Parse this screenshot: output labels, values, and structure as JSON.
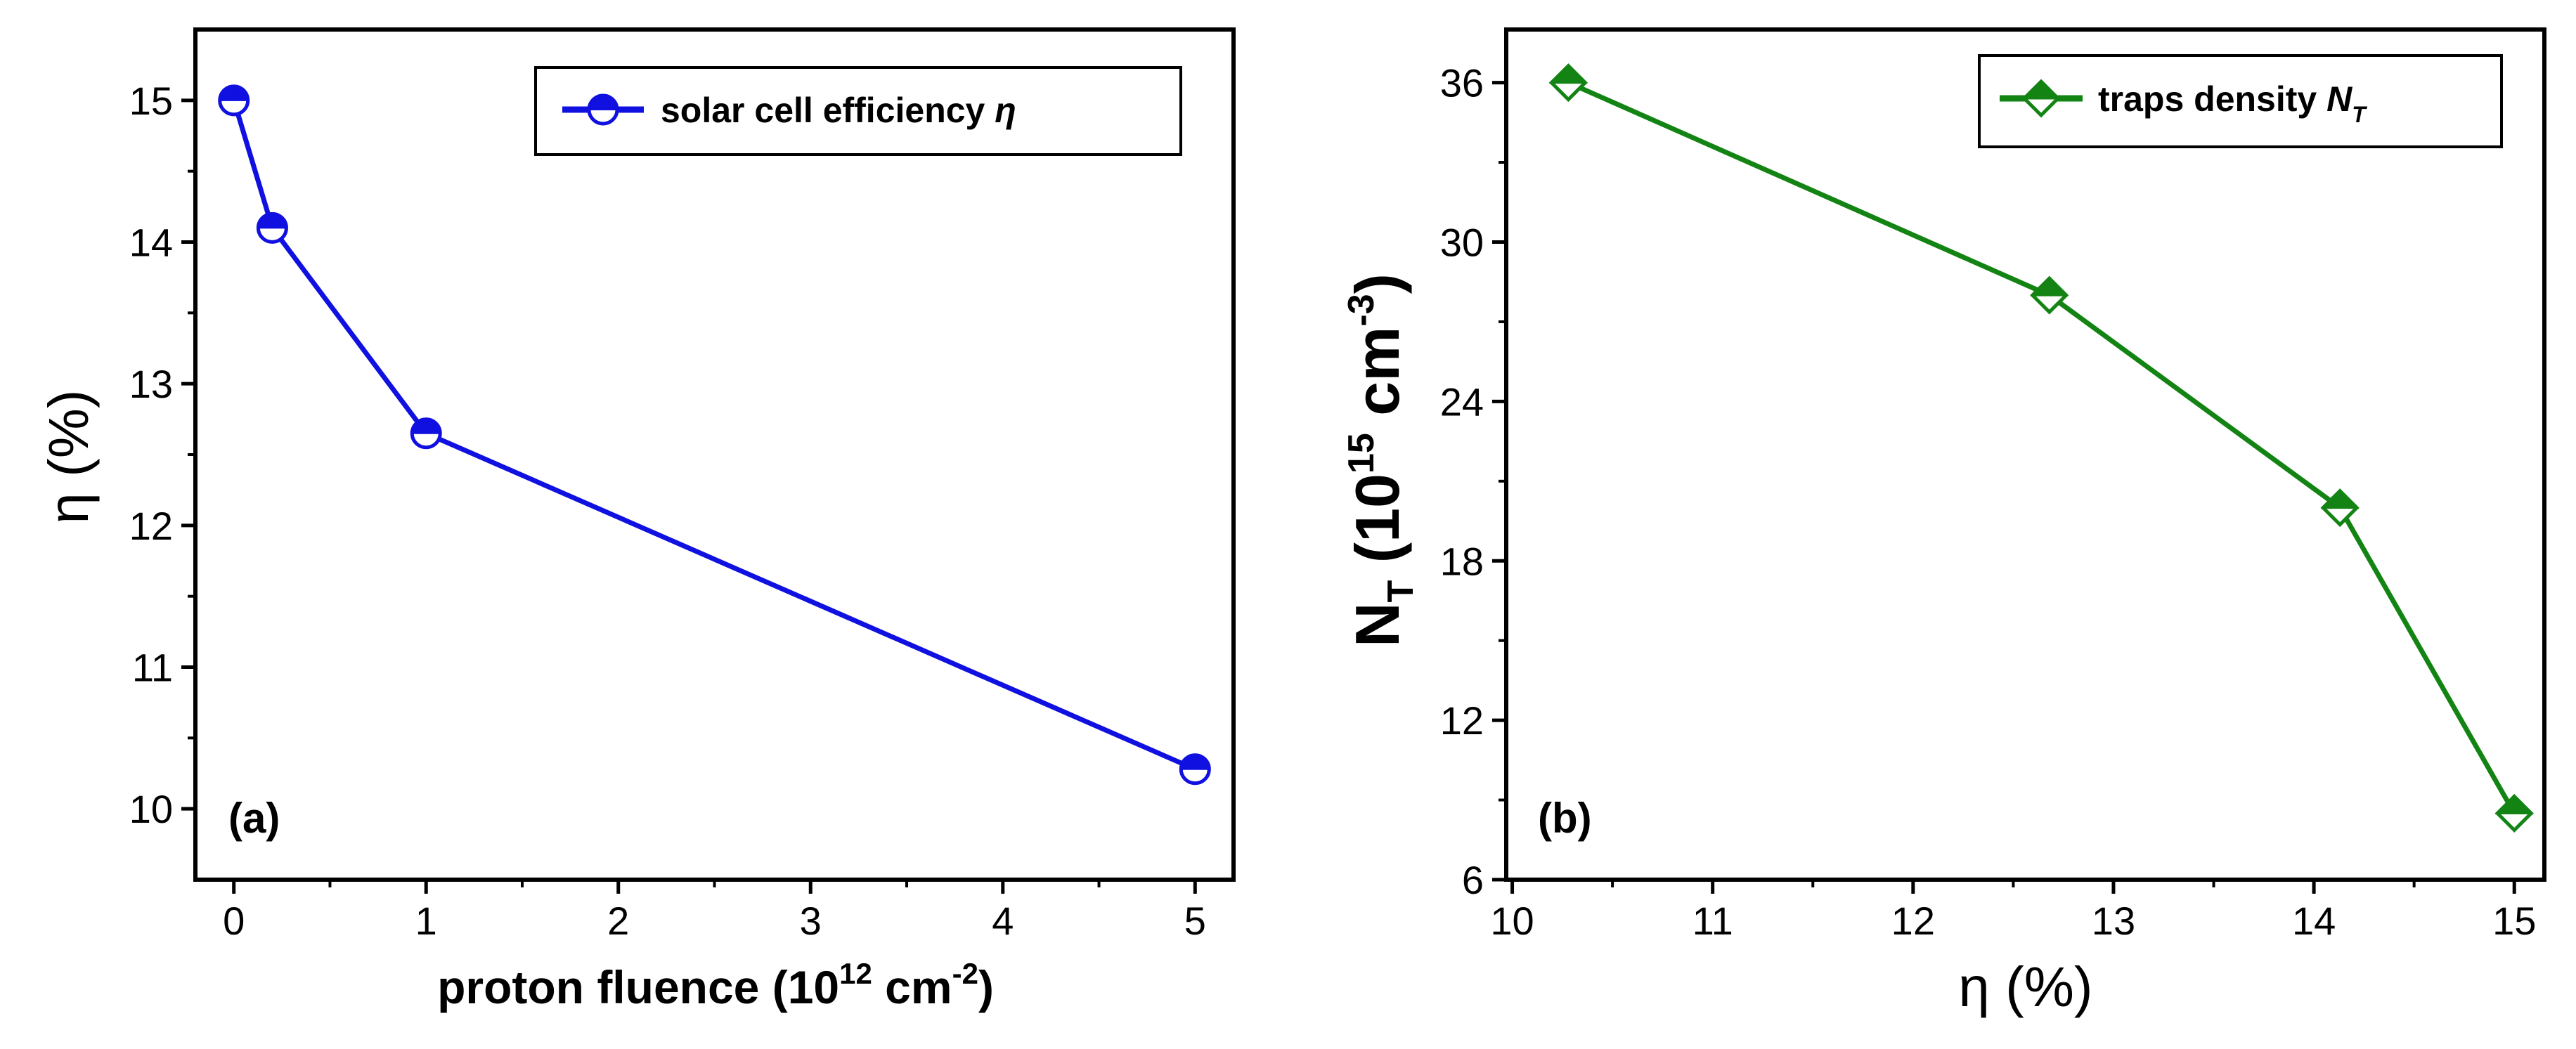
{
  "chart_data": [
    {
      "type": "line",
      "panel_label": "(a)",
      "xlabel": {
        "main": "proton fluence (10",
        "sup": "12",
        "mid": " cm",
        "sup2": "-2",
        "end": ")"
      },
      "ylabel": "η (%)",
      "xlim": [
        -0.2,
        5.2
      ],
      "ylim": [
        9.5,
        15.5
      ],
      "xticks": [
        0,
        1,
        2,
        3,
        4,
        5
      ],
      "yticks": [
        10,
        11,
        12,
        13,
        14,
        15
      ],
      "series": [
        {
          "name": "solar cell efficiency",
          "name_symbol": "η",
          "color": "#1010e0",
          "marker": "half-filled-circle",
          "x": [
            0,
            0.2,
            1,
            5
          ],
          "y": [
            15.0,
            14.1,
            12.65,
            10.28
          ]
        }
      ],
      "legend_position": "top-right"
    },
    {
      "type": "line",
      "panel_label": "(b)",
      "xlabel": "η (%)",
      "ylabel": {
        "main": "N",
        "sub": "T",
        "open": " (10",
        "sup": "15",
        "mid": " cm",
        "sup2": "-3",
        "end": ")"
      },
      "xlim": [
        9.97,
        15.15
      ],
      "ylim": [
        6,
        38
      ],
      "xticks": [
        10,
        11,
        12,
        13,
        14,
        15
      ],
      "yticks": [
        6,
        12,
        18,
        24,
        30,
        36
      ],
      "series": [
        {
          "name": "traps density",
          "name_symbol": "N",
          "name_sub": "T",
          "color": "#138413",
          "marker": "half-filled-diamond",
          "x": [
            10.28,
            12.68,
            14.13,
            15.0
          ],
          "y": [
            36.0,
            28.0,
            20.0,
            8.5
          ]
        }
      ],
      "legend_position": "top-right"
    }
  ]
}
